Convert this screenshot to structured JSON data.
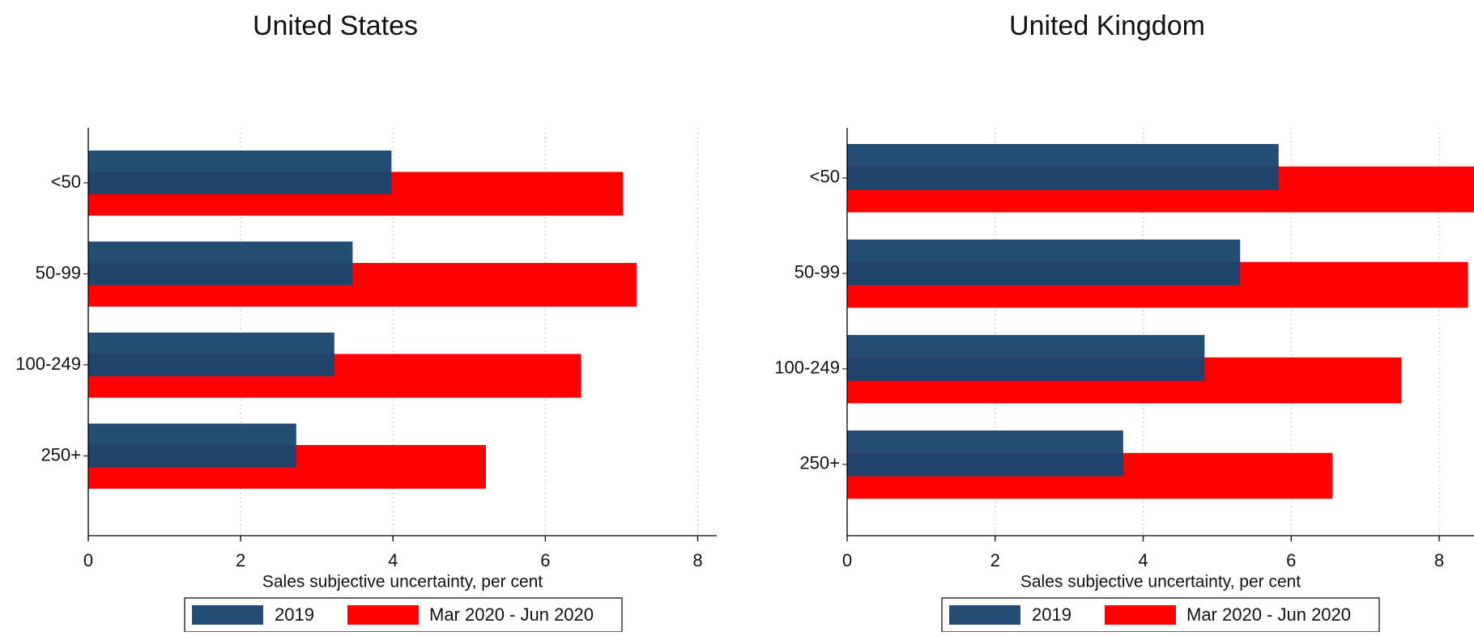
{
  "chart_data": [
    {
      "type": "bar",
      "orientation": "horizontal",
      "title": "United States",
      "categories": [
        "<50",
        "50-99",
        "100-249",
        "250+"
      ],
      "series": [
        {
          "name": "2019",
          "values": [
            3.98,
            3.47,
            3.23,
            2.73
          ]
        },
        {
          "name": "Mar 2020 - Jun 2020",
          "values": [
            7.02,
            7.2,
            6.47,
            5.22
          ]
        }
      ],
      "xlabel": "Sales subjective uncertainty, per cent",
      "ylabel": "",
      "xlim": [
        0,
        8.25
      ],
      "xticks": [
        0,
        2,
        4,
        6,
        8
      ],
      "grid": "vertical-dotted",
      "legend": "bottom"
    },
    {
      "type": "bar",
      "orientation": "horizontal",
      "title": "United Kingdom",
      "categories": [
        "<50",
        "50-99",
        "100-249",
        "250+"
      ],
      "series": [
        {
          "name": "2019",
          "values": [
            5.83,
            5.31,
            4.83,
            3.73
          ]
        },
        {
          "name": "Mar 2020 - Jun 2020",
          "values": [
            8.47,
            8.39,
            7.49,
            6.56
          ]
        }
      ],
      "xlabel": "Sales subjective uncertainty, per cent",
      "ylabel": "",
      "xlim": [
        0,
        8.47
      ],
      "xticks": [
        0,
        2,
        4,
        6,
        8
      ],
      "grid": "vertical-dotted",
      "legend": "bottom"
    }
  ],
  "colors": {
    "series_2019": "#244d75",
    "series_2019_shade": "#1f436a",
    "series_2020": "#ff0000",
    "axis": "#000000",
    "grid": "#bbbbbb"
  }
}
